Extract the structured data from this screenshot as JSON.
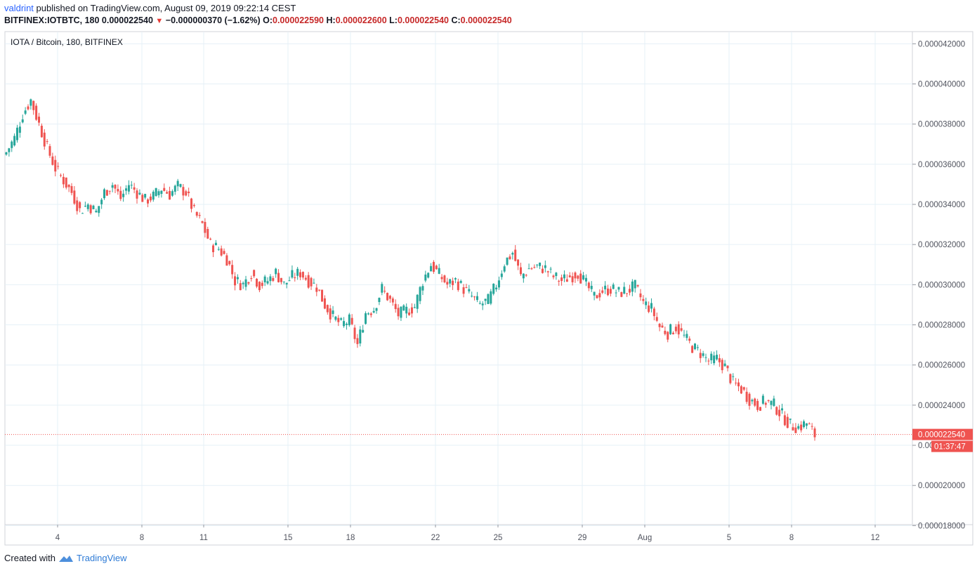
{
  "header": {
    "author": "valdrint",
    "publish_text": "published on TradingView.com, August 09, 2019 09:22:14 CEST",
    "symbol": "BITFINEX:IOTBTC, 180",
    "last": "0.000022540",
    "change": "−0.000000370 (−1.62%)",
    "o_label": "O:",
    "o_value": "0.000022590",
    "h_label": "H:",
    "h_value": "0.000022600",
    "l_label": "L:",
    "l_value": "0.000022540",
    "c_label": "C:",
    "c_value": "0.000022540"
  },
  "chart_data": {
    "type": "candlestick",
    "title": "IOTA / Bitcoin, 180, BITFINEX",
    "ylim": [
      1.8e-05,
      4.24e-05
    ],
    "y_ticks": [
      "0.000042000",
      "0.000040000",
      "0.000038000",
      "0.000036000",
      "0.000034000",
      "0.000032000",
      "0.000030000",
      "0.000028000",
      "0.000026000",
      "0.000024000",
      "0.000022000",
      "0.000020000",
      "0.000018000"
    ],
    "x_ticks": [
      "4",
      "8",
      "11",
      "15",
      "18",
      "22",
      "25",
      "29",
      "Aug",
      "5",
      "8",
      "12"
    ],
    "last_price_label": "0.000022540",
    "countdown_label": "01:37:47",
    "last_price": 2.254e-05,
    "colors": {
      "up": "#26a69a",
      "down": "#ef5350",
      "grid": "#e6f0f7",
      "axis": "#555555"
    },
    "series": [
      {
        "values": [
          [
            0,
            3.66e-05
          ],
          [
            1,
            3.73e-05
          ],
          [
            2,
            3.85e-05
          ],
          [
            3,
            3.92e-05
          ],
          [
            4,
            3.8e-05
          ],
          [
            5,
            3.68e-05
          ],
          [
            6,
            3.58e-05
          ],
          [
            7,
            3.52e-05
          ],
          [
            8,
            3.46e-05
          ],
          [
            9,
            3.37e-05
          ],
          [
            10,
            3.4e-05
          ],
          [
            11,
            3.36e-05
          ],
          [
            12,
            3.46e-05
          ],
          [
            13,
            3.5e-05
          ],
          [
            14,
            3.43e-05
          ],
          [
            15,
            3.5e-05
          ],
          [
            16,
            3.46e-05
          ],
          [
            17,
            3.42e-05
          ],
          [
            18,
            3.44e-05
          ],
          [
            19,
            3.48e-05
          ],
          [
            20,
            3.45e-05
          ],
          [
            21,
            3.49e-05
          ],
          [
            22,
            3.46e-05
          ],
          [
            23,
            3.36e-05
          ],
          [
            24,
            3.3e-05
          ],
          [
            25,
            3.2e-05
          ],
          [
            26,
            3.18e-05
          ],
          [
            27,
            3.13e-05
          ],
          [
            28,
            3.02e-05
          ],
          [
            29,
            3e-05
          ],
          [
            30,
            3.06e-05
          ],
          [
            31,
            3e-05
          ],
          [
            32,
            3.02e-05
          ],
          [
            33,
            3.06e-05
          ],
          [
            34,
            3e-05
          ],
          [
            35,
            3.04e-05
          ],
          [
            36,
            3.06e-05
          ],
          [
            37,
            3.02e-05
          ],
          [
            38,
            2.99e-05
          ],
          [
            39,
            2.9e-05
          ],
          [
            40,
            2.84e-05
          ],
          [
            41,
            2.8e-05
          ],
          [
            42,
            2.82e-05
          ],
          [
            43,
            2.7e-05
          ],
          [
            44,
            2.86e-05
          ],
          [
            45,
            2.88e-05
          ],
          [
            46,
            2.98e-05
          ],
          [
            47,
            2.92e-05
          ],
          [
            48,
            2.85e-05
          ],
          [
            49,
            2.87e-05
          ],
          [
            50,
            2.89e-05
          ],
          [
            51,
            3.02e-05
          ],
          [
            52,
            3.1e-05
          ],
          [
            53,
            3.05e-05
          ],
          [
            54,
            3e-05
          ],
          [
            55,
            3.02e-05
          ],
          [
            56,
            2.98e-05
          ],
          [
            57,
            2.94e-05
          ],
          [
            58,
            2.9e-05
          ],
          [
            59,
            2.92e-05
          ],
          [
            60,
            3e-05
          ],
          [
            61,
            3.11e-05
          ],
          [
            62,
            3.16e-05
          ],
          [
            63,
            3.04e-05
          ],
          [
            64,
            3.08e-05
          ],
          [
            65,
            3.09e-05
          ],
          [
            66,
            3.08e-05
          ],
          [
            67,
            3.04e-05
          ],
          [
            68,
            3.02e-05
          ],
          [
            69,
            3.04e-05
          ],
          [
            70,
            3.06e-05
          ],
          [
            71,
            3e-05
          ],
          [
            72,
            2.94e-05
          ],
          [
            73,
            2.97e-05
          ],
          [
            74,
            2.98e-05
          ],
          [
            75,
            2.96e-05
          ],
          [
            76,
            2.97e-05
          ],
          [
            77,
            2.99e-05
          ],
          [
            78,
            2.91e-05
          ],
          [
            79,
            2.88e-05
          ],
          [
            80,
            2.79e-05
          ],
          [
            81,
            2.76e-05
          ],
          [
            82,
            2.79e-05
          ],
          [
            83,
            2.74e-05
          ],
          [
            84,
            2.69e-05
          ],
          [
            85,
            2.66e-05
          ],
          [
            86,
            2.62e-05
          ],
          [
            87,
            2.63e-05
          ],
          [
            88,
            2.59e-05
          ],
          [
            89,
            2.51e-05
          ],
          [
            90,
            2.48e-05
          ],
          [
            91,
            2.43e-05
          ],
          [
            92,
            2.4e-05
          ],
          [
            93,
            2.42e-05
          ],
          [
            94,
            2.4e-05
          ],
          [
            95,
            2.35e-05
          ],
          [
            96,
            2.3e-05
          ],
          [
            97,
            2.29e-05
          ],
          [
            98,
            2.31e-05
          ],
          [
            99,
            2.25e-05
          ]
        ]
      }
    ]
  },
  "footer": {
    "created_with": "Created with",
    "brand": "TradingView"
  }
}
